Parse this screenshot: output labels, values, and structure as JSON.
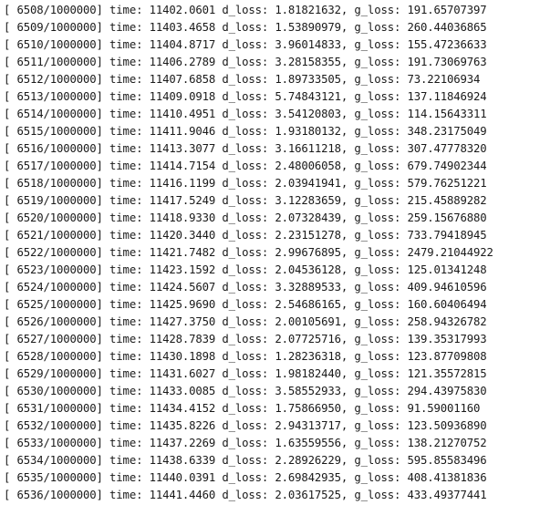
{
  "console": {
    "lines": [
      "[ 6508/1000000] time: 11402.0601 d_loss: 1.81821632, g_loss: 191.65707397",
      "[ 6509/1000000] time: 11403.4658 d_loss: 1.53890979, g_loss: 260.44036865",
      "[ 6510/1000000] time: 11404.8717 d_loss: 3.96014833, g_loss: 155.47236633",
      "[ 6511/1000000] time: 11406.2789 d_loss: 3.28158355, g_loss: 191.73069763",
      "[ 6512/1000000] time: 11407.6858 d_loss: 1.89733505, g_loss: 73.22106934",
      "[ 6513/1000000] time: 11409.0918 d_loss: 5.74843121, g_loss: 137.11846924",
      "[ 6514/1000000] time: 11410.4951 d_loss: 3.54120803, g_loss: 114.15643311",
      "[ 6515/1000000] time: 11411.9046 d_loss: 1.93180132, g_loss: 348.23175049",
      "[ 6516/1000000] time: 11413.3077 d_loss: 3.16611218, g_loss: 307.47778320",
      "[ 6517/1000000] time: 11414.7154 d_loss: 2.48006058, g_loss: 679.74902344",
      "[ 6518/1000000] time: 11416.1199 d_loss: 2.03941941, g_loss: 579.76251221",
      "[ 6519/1000000] time: 11417.5249 d_loss: 3.12283659, g_loss: 215.45889282",
      "[ 6520/1000000] time: 11418.9330 d_loss: 2.07328439, g_loss: 259.15676880",
      "[ 6521/1000000] time: 11420.3440 d_loss: 2.23151278, g_loss: 733.79418945",
      "[ 6522/1000000] time: 11421.7482 d_loss: 2.99676895, g_loss: 2479.21044922",
      "[ 6523/1000000] time: 11423.1592 d_loss: 2.04536128, g_loss: 125.01341248",
      "[ 6524/1000000] time: 11424.5607 d_loss: 3.32889533, g_loss: 409.94610596",
      "[ 6525/1000000] time: 11425.9690 d_loss: 2.54686165, g_loss: 160.60406494",
      "[ 6526/1000000] time: 11427.3750 d_loss: 2.00105691, g_loss: 258.94326782",
      "[ 6527/1000000] time: 11428.7839 d_loss: 2.07725716, g_loss: 139.35317993",
      "[ 6528/1000000] time: 11430.1898 d_loss: 1.28236318, g_loss: 123.87709808",
      "[ 6529/1000000] time: 11431.6027 d_loss: 1.98182440, g_loss: 121.35572815",
      "[ 6530/1000000] time: 11433.0085 d_loss: 3.58552933, g_loss: 294.43975830",
      "[ 6531/1000000] time: 11434.4152 d_loss: 1.75866950, g_loss: 91.59001160",
      "[ 6532/1000000] time: 11435.8226 d_loss: 2.94313717, g_loss: 123.50936890",
      "[ 6533/1000000] time: 11437.2269 d_loss: 1.63559556, g_loss: 138.21270752",
      "[ 6534/1000000] time: 11438.6339 d_loss: 2.28926229, g_loss: 595.85583496",
      "[ 6535/1000000] time: 11440.0391 d_loss: 2.69842935, g_loss: 408.41381836",
      "[ 6536/1000000] time: 11441.4460 d_loss: 2.03617525, g_loss: 433.49377441"
    ]
  }
}
